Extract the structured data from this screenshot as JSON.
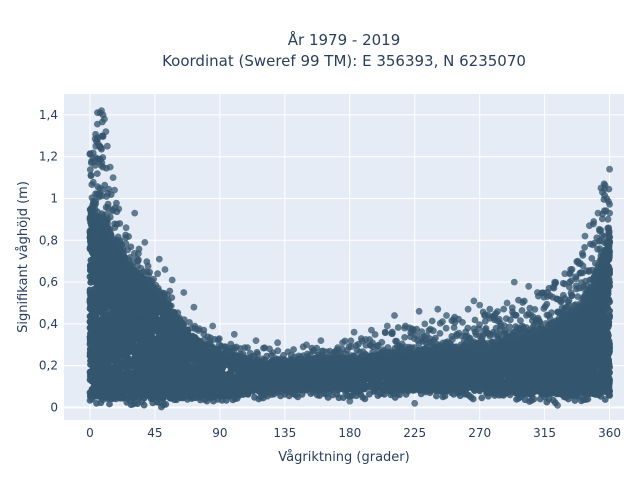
{
  "chart_data": {
    "type": "scatter",
    "title_lines": [
      "År 1979 - 2019",
      "Koordinat (Sweref 99 TM): E 356393, N 6235070"
    ],
    "xlabel": "Vågriktning (grader)",
    "ylabel": "Signifikant våghöjd (m)",
    "xlim": [
      -18,
      370
    ],
    "ylim": [
      -0.06,
      1.5
    ],
    "x_ticks": [
      0,
      45,
      90,
      135,
      180,
      225,
      270,
      315,
      360
    ],
    "x_tick_labels": [
      "0",
      "45",
      "90",
      "135",
      "180",
      "225",
      "270",
      "315",
      "360"
    ],
    "y_ticks": [
      0,
      0.2,
      0.4,
      0.6,
      0.8,
      1.0,
      1.2,
      1.4
    ],
    "y_tick_labels": [
      "0",
      "0,2",
      "0,4",
      "0,6",
      "0,8",
      "1",
      "1,2",
      "1,4"
    ],
    "grid": true,
    "background_color": "#e5ecf6",
    "marker_color": "#34566e",
    "series": [
      {
        "upper_envelope": [
          [
            0,
            1.22
          ],
          [
            3,
            1.3
          ],
          [
            6,
            1.43
          ],
          [
            9,
            1.4
          ],
          [
            12,
            1.2
          ],
          [
            15,
            1.05
          ],
          [
            20,
            0.93
          ],
          [
            25,
            0.85
          ],
          [
            30,
            0.8
          ],
          [
            35,
            0.76
          ],
          [
            40,
            0.72
          ],
          [
            45,
            0.68
          ],
          [
            50,
            0.63
          ],
          [
            55,
            0.57
          ],
          [
            60,
            0.5
          ],
          [
            65,
            0.45
          ],
          [
            70,
            0.41
          ],
          [
            75,
            0.39
          ],
          [
            80,
            0.37
          ],
          [
            90,
            0.34
          ],
          [
            100,
            0.32
          ],
          [
            110,
            0.3
          ],
          [
            120,
            0.29
          ],
          [
            135,
            0.29
          ],
          [
            150,
            0.3
          ],
          [
            165,
            0.31
          ],
          [
            180,
            0.33
          ],
          [
            195,
            0.35
          ],
          [
            210,
            0.38
          ],
          [
            225,
            0.4
          ],
          [
            240,
            0.42
          ],
          [
            255,
            0.44
          ],
          [
            270,
            0.46
          ],
          [
            285,
            0.49
          ],
          [
            300,
            0.52
          ],
          [
            315,
            0.56
          ],
          [
            325,
            0.62
          ],
          [
            335,
            0.68
          ],
          [
            345,
            0.8
          ],
          [
            352,
            0.93
          ],
          [
            356,
            1.05
          ],
          [
            360,
            1.14
          ]
        ],
        "lower_envelope": [
          [
            0,
            0.02
          ],
          [
            45,
            0.0
          ],
          [
            90,
            0.02
          ],
          [
            135,
            0.05
          ],
          [
            180,
            0.04
          ],
          [
            225,
            0.04
          ],
          [
            270,
            0.04
          ],
          [
            315,
            0.02
          ],
          [
            360,
            0.03
          ]
        ],
        "dense_upper": [
          [
            0,
            0.95
          ],
          [
            10,
            0.88
          ],
          [
            20,
            0.76
          ],
          [
            30,
            0.66
          ],
          [
            40,
            0.6
          ],
          [
            50,
            0.54
          ],
          [
            60,
            0.44
          ],
          [
            70,
            0.35
          ],
          [
            80,
            0.3
          ],
          [
            90,
            0.27
          ],
          [
            110,
            0.23
          ],
          [
            135,
            0.23
          ],
          [
            180,
            0.24
          ],
          [
            225,
            0.27
          ],
          [
            270,
            0.3
          ],
          [
            300,
            0.34
          ],
          [
            320,
            0.4
          ],
          [
            340,
            0.48
          ],
          [
            350,
            0.6
          ],
          [
            360,
            0.82
          ]
        ],
        "dense_lower": [
          [
            0,
            0.05
          ],
          [
            45,
            0.04
          ],
          [
            90,
            0.05
          ],
          [
            135,
            0.08
          ],
          [
            180,
            0.08
          ],
          [
            225,
            0.08
          ],
          [
            270,
            0.07
          ],
          [
            315,
            0.06
          ],
          [
            360,
            0.06
          ]
        ],
        "outliers": [
          [
            8,
            1.42
          ],
          [
            7,
            1.41
          ],
          [
            10,
            1.38
          ],
          [
            11,
            1.32
          ],
          [
            12,
            1.25
          ],
          [
            9,
            1.3
          ],
          [
            4,
            1.25
          ],
          [
            2,
            1.19
          ],
          [
            1,
            1.17
          ],
          [
            14,
            1.15
          ],
          [
            16,
            1.1
          ],
          [
            17,
            1.04
          ],
          [
            20,
            0.95
          ],
          [
            31,
            0.93
          ],
          [
            25,
            0.86
          ],
          [
            38,
            0.79
          ],
          [
            48,
            0.71
          ],
          [
            52,
            0.66
          ],
          [
            57,
            0.61
          ],
          [
            65,
            0.55
          ],
          [
            72,
            0.48
          ],
          [
            85,
            0.39
          ],
          [
            100,
            0.35
          ],
          [
            115,
            0.32
          ],
          [
            130,
            0.31
          ],
          [
            150,
            0.3
          ],
          [
            160,
            0.32
          ],
          [
            175,
            0.31
          ],
          [
            183,
            0.36
          ],
          [
            195,
            0.37
          ],
          [
            206,
            0.39
          ],
          [
            211,
            0.44
          ],
          [
            218,
            0.38
          ],
          [
            228,
            0.46
          ],
          [
            232,
            0.4
          ],
          [
            241,
            0.47
          ],
          [
            247,
            0.44
          ],
          [
            252,
            0.42
          ],
          [
            262,
            0.47
          ],
          [
            266,
            0.51
          ],
          [
            270,
            0.49
          ],
          [
            276,
            0.44
          ],
          [
            289,
            0.5
          ],
          [
            294,
            0.6
          ],
          [
            304,
            0.58
          ],
          [
            310,
            0.55
          ],
          [
            318,
            0.57
          ],
          [
            322,
            0.6
          ],
          [
            329,
            0.64
          ],
          [
            333,
            0.66
          ],
          [
            338,
            0.7
          ],
          [
            343,
            0.82
          ],
          [
            346,
            0.87
          ],
          [
            349,
            0.89
          ],
          [
            352,
            0.93
          ],
          [
            354,
            1.05
          ],
          [
            355,
            1.03
          ],
          [
            358,
            1.0
          ],
          [
            360,
            1.14
          ],
          [
            324,
            0.01
          ],
          [
            180,
            0.03
          ],
          [
            225,
            0.02
          ]
        ]
      }
    ]
  }
}
